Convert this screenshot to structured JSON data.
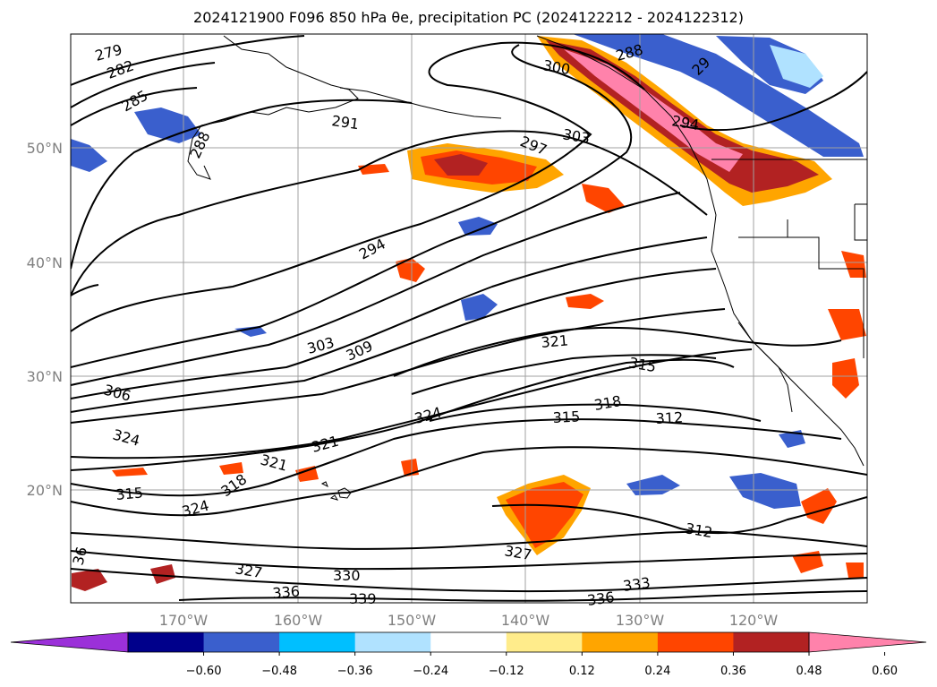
{
  "title": "2024121900 F096 850 hPa θe, precipitation PC (2024122212 - 2024122312)",
  "map": {
    "lon_labels": [
      "170°W",
      "160°W",
      "150°W",
      "140°W",
      "130°W",
      "120°W"
    ],
    "lat_labels": [
      "50°N",
      "40°N",
      "30°N",
      "20°N"
    ],
    "contour_labels": [
      {
        "text": "279"
      },
      {
        "text": "282"
      },
      {
        "text": "285"
      },
      {
        "text": "288"
      },
      {
        "text": "291"
      },
      {
        "text": "297"
      },
      {
        "text": "303"
      },
      {
        "text": "300"
      },
      {
        "text": "288"
      },
      {
        "text": "29"
      },
      {
        "text": "294"
      },
      {
        "text": "294"
      },
      {
        "text": "303"
      },
      {
        "text": "309"
      },
      {
        "text": "321"
      },
      {
        "text": "315"
      },
      {
        "text": "306"
      },
      {
        "text": "324"
      },
      {
        "text": "324"
      },
      {
        "text": "321"
      },
      {
        "text": "318"
      },
      {
        "text": "315"
      },
      {
        "text": "312"
      },
      {
        "text": "321"
      },
      {
        "text": "318"
      },
      {
        "text": "315"
      },
      {
        "text": "324"
      },
      {
        "text": "312"
      },
      {
        "text": "327"
      },
      {
        "text": "327"
      },
      {
        "text": "330"
      },
      {
        "text": "336"
      },
      {
        "text": "339"
      },
      {
        "text": "336"
      },
      {
        "text": "333"
      },
      {
        "text": "36"
      }
    ]
  },
  "colorbar": {
    "colors": [
      "#9b30d9",
      "#00008b",
      "#3a5fcd",
      "#00bfff",
      "#b0e2ff",
      "#ffffff",
      "#ffec8b",
      "#ffa500",
      "#ff4500",
      "#b22222",
      "#ff82ab"
    ],
    "tick_labels": [
      "−0.60",
      "−0.48",
      "−0.36",
      "−0.24",
      "−0.12",
      "0.12",
      "0.24",
      "0.36",
      "0.48",
      "0.60"
    ],
    "under_color": "#9b30d9",
    "over_color": "#ff82ab"
  }
}
